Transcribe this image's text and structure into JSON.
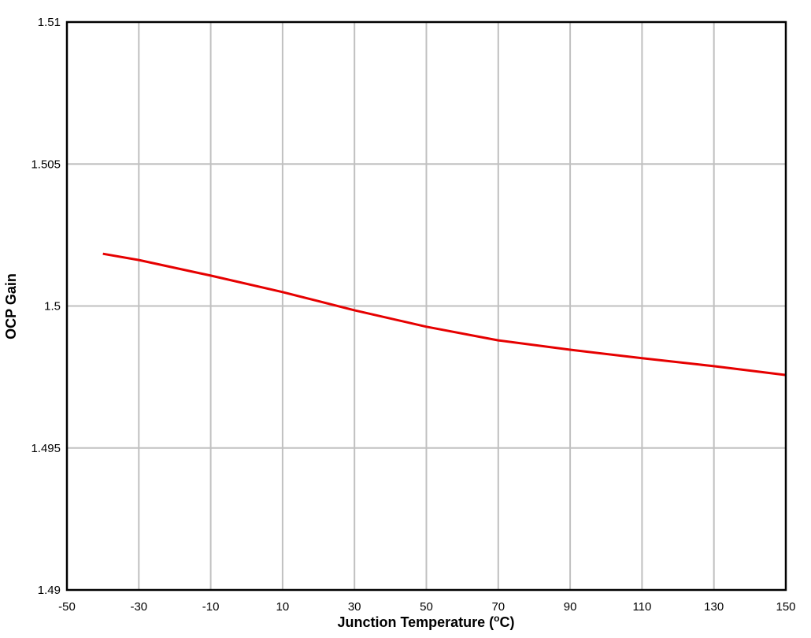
{
  "chart_data": {
    "type": "line",
    "title": "",
    "xlabel": "Junction Temperature (°C)",
    "xlabel_parts": {
      "main": "Junction Temperature (",
      "sup": "o",
      "end": "C)"
    },
    "ylabel": "OCP Gain",
    "xlim": [
      -50,
      150
    ],
    "ylim": [
      1.49,
      1.51
    ],
    "x_ticks": [
      -50,
      -30,
      -10,
      10,
      30,
      50,
      70,
      90,
      110,
      130,
      150
    ],
    "y_ticks": [
      1.49,
      1.495,
      1.5,
      1.505,
      1.51
    ],
    "y_tick_labels": [
      "1.49",
      "1.495",
      "1.5",
      "1.505",
      "1.51"
    ],
    "grid": true,
    "legend": null,
    "series": [
      {
        "name": "OCP Gain",
        "color": "#e60000",
        "x": [
          -40,
          -30,
          -10,
          10,
          30,
          50,
          70,
          90,
          110,
          130,
          150
        ],
        "values": [
          1.50184,
          1.50162,
          1.50107,
          1.50049,
          1.49985,
          1.49927,
          1.49879,
          1.49846,
          1.49816,
          1.49788,
          1.49757
        ]
      }
    ]
  },
  "colors": {
    "grid": "#c0c0c0",
    "axis": "#000000",
    "line": "#e60000"
  }
}
